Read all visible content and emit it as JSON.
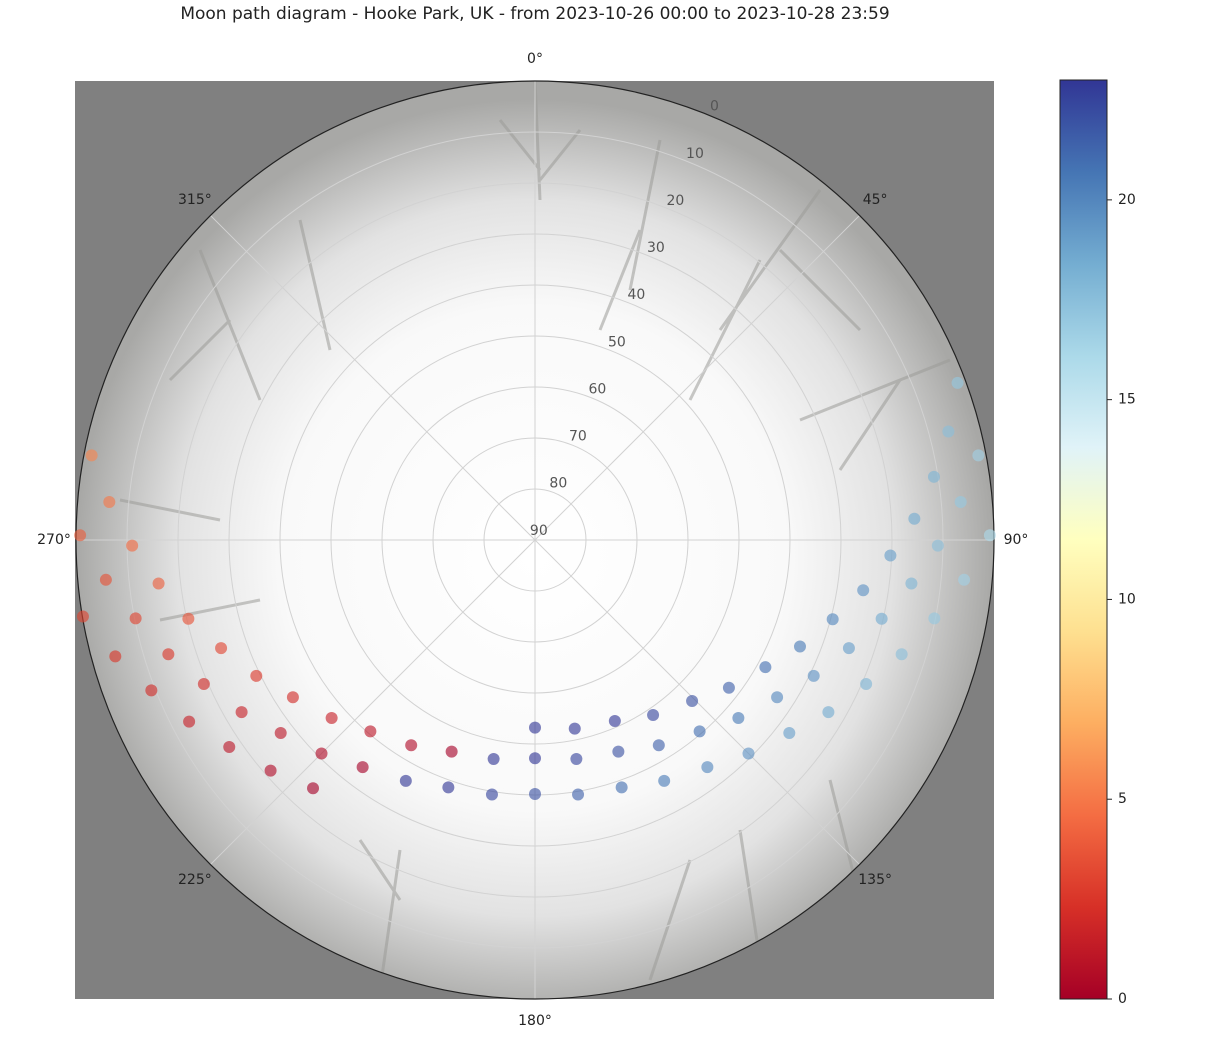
{
  "chart_data": {
    "type": "polar-scatter",
    "title": "Moon path diagram - Hooke Park, UK - from 2023-10-26 00:00 to 2023-10-28 23:59",
    "theta_zero": "N",
    "theta_direction": "clockwise",
    "thetaticks": [
      {
        "value": 0,
        "label": "0°"
      },
      {
        "value": 45,
        "label": "45°"
      },
      {
        "value": 90,
        "label": "90°"
      },
      {
        "value": 135,
        "label": "135°"
      },
      {
        "value": 180,
        "label": "180°"
      },
      {
        "value": 225,
        "label": "225°"
      },
      {
        "value": 270,
        "label": "270°"
      },
      {
        "value": 315,
        "label": "315°"
      }
    ],
    "rlim": [
      90,
      0
    ],
    "rticks": [
      0,
      10,
      20,
      30,
      40,
      50,
      60,
      70,
      80,
      90
    ],
    "grid": true,
    "colormap": "RdYlBu",
    "clim": [
      0,
      23
    ],
    "cticks": [
      0,
      5,
      10,
      15,
      20
    ],
    "x": [
      221.8,
      228.9,
      235.9,
      242.3,
      248.6,
      254.5,
      260.4,
      89.4,
      95.3,
      101.1,
      107.3,
      113.5,
      120.4,
      127.2,
      135.0,
      142.8,
      151.8,
      160.7,
      170.4,
      180,
      189.6,
      199.3,
      208.2,
      217.2,
      225.0,
      232.8,
      239.6,
      246.5,
      252.7,
      258.9,
      264.7,
      270.6,
      79.2,
      84.9,
      90.8,
      96.6,
      102.8,
      109.0,
      116.0,
      123.0,
      131.2,
      139.3,
      148.9,
      158.5,
      169.3,
      180,
      190.7,
      201.5,
      211.1,
      220.7,
      228.8,
      237.0,
      244.0,
      251.0,
      257.2,
      263.4,
      269.2,
      275.1,
      280.8,
      69.6,
      75.3,
      81.0,
      86.8,
      92.5,
      98.7,
      104.9,
      111.9,
      118.9,
      127.3,
      135.7,
      146.0,
      156.2,
      168.1,
      180
    ],
    "values": [
      24.7,
      21.2,
      17.6,
      13.4,
      9.2,
      4.6,
      0.1,
      0.8,
      5.5,
      10.2,
      14.7,
      19.2,
      23.3,
      27.4,
      30.8,
      34.1,
      36.4,
      38.6,
      39.4,
      40.2,
      39.4,
      38.6,
      36.4,
      34.1,
      30.8,
      27.4,
      23.3,
      19.2,
      14.7,
      10.2,
      5.5,
      0.8,
      1.5,
      6.2,
      11.0,
      15.7,
      20.3,
      24.9,
      29.2,
      33.4,
      37.0,
      40.5,
      43.0,
      45.4,
      46.3,
      47.2,
      46.3,
      45.4,
      43.0,
      40.5,
      37.0,
      33.4,
      29.2,
      24.9,
      20.3,
      15.7,
      11.0,
      6.2,
      1.5,
      1.6,
      6.2,
      10.8,
      15.5,
      20.25,
      24.9,
      29.6,
      34.0,
      38.4,
      42.2,
      45.9,
      48.6,
      51.2,
      52.2,
      53.2
    ],
    "c": [
      0,
      0.5,
      1,
      1.5,
      2,
      2.5,
      3,
      16,
      16.5,
      17,
      17.5,
      18,
      18.5,
      19,
      19.5,
      20,
      20.5,
      21,
      21.5,
      22,
      22.5,
      23,
      23.5,
      0,
      0.5,
      1,
      1.5,
      2,
      2.5,
      3,
      3.5,
      4,
      16.5,
      17,
      17.5,
      18,
      18.5,
      19,
      19.5,
      20,
      20.5,
      21,
      21.5,
      22,
      22.5,
      23,
      23.5,
      0,
      0.5,
      1,
      1.5,
      2,
      2.5,
      3,
      3.5,
      4,
      4.5,
      5,
      5.5,
      17,
      17.5,
      18,
      18.5,
      19,
      19.5,
      20,
      20.5,
      21,
      21.5,
      22,
      22.5,
      23,
      23.5,
      23.98
    ]
  }
}
